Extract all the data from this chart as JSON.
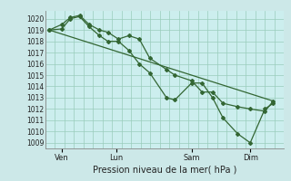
{
  "title": "Pression niveau de la mer( hPa )",
  "bg_outer": "#cce8e8",
  "bg_inner": "#cceeee",
  "grid_color": "#99ccbb",
  "line_color": "#336633",
  "marker_color": "#336633",
  "ylim": [
    1008.5,
    1020.7
  ],
  "yticks": [
    1009,
    1010,
    1011,
    1012,
    1013,
    1014,
    1015,
    1016,
    1017,
    1018,
    1019,
    1020
  ],
  "xtick_labels": [
    "Ven",
    "Lun",
    "Sam",
    "Dim"
  ],
  "xtick_positions": [
    16,
    68,
    140,
    196
  ],
  "num_xgrid": 25,
  "series1_x": [
    4,
    16,
    24,
    33,
    42,
    52,
    60,
    70,
    80,
    90,
    100,
    116,
    124,
    140,
    150,
    160,
    170,
    184,
    196,
    210,
    218
  ],
  "series1_y": [
    1019.0,
    1019.1,
    1020.0,
    1020.2,
    1019.3,
    1018.5,
    1018.0,
    1018.0,
    1017.2,
    1016.0,
    1015.2,
    1013.0,
    1012.8,
    1014.3,
    1014.3,
    1013.0,
    1011.2,
    1009.8,
    1009.0,
    1012.0,
    1012.5
  ],
  "series2_x": [
    4,
    16,
    24,
    33,
    42,
    52,
    60,
    70,
    80,
    90,
    100,
    116,
    124,
    140,
    150,
    160,
    170,
    184,
    196,
    210,
    218
  ],
  "series2_y": [
    1019.0,
    1019.5,
    1020.1,
    1020.3,
    1019.5,
    1019.0,
    1018.8,
    1018.2,
    1018.5,
    1018.2,
    1016.5,
    1015.5,
    1015.0,
    1014.5,
    1013.5,
    1013.5,
    1012.5,
    1012.2,
    1012.0,
    1011.8,
    1012.7
  ],
  "series3_x": [
    4,
    218
  ],
  "series3_y": [
    1019.0,
    1012.7
  ],
  "xlim": [
    0,
    228
  ]
}
